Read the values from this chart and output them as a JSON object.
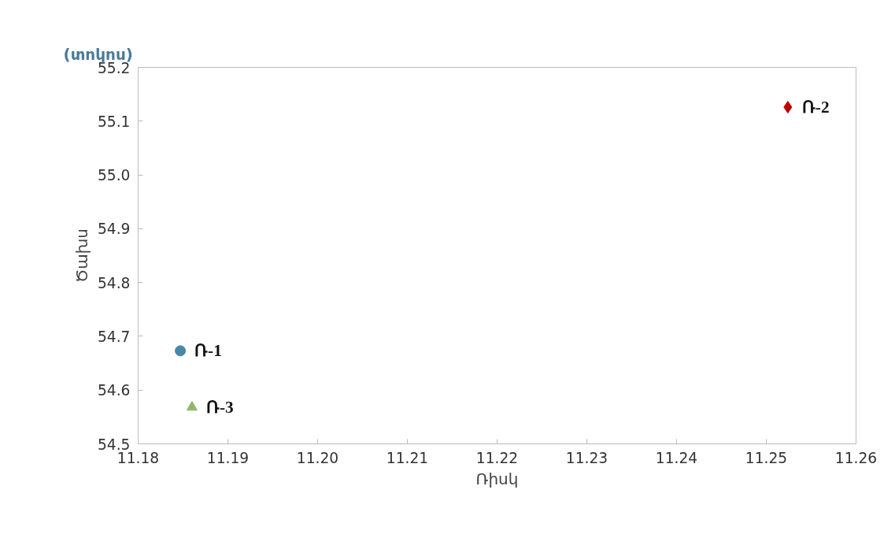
{
  "chart_data": {
    "type": "scatter",
    "xlabel": "Ռիսկ",
    "ylabel": "Ծախս",
    "annotations": [
      "(տոկոս)"
    ],
    "series": [
      {
        "name": "Ռ-1",
        "color": "#4a86a8",
        "marker": "circle",
        "x": [
          11.1847
        ],
        "values": [
          54.673
        ]
      },
      {
        "name": "Ռ-2",
        "color": "#c00000",
        "marker": "diamond",
        "x": [
          11.2524
        ],
        "values": [
          55.126
        ]
      },
      {
        "name": "Ռ-3",
        "color": "#8fb66a",
        "marker": "triangle",
        "x": [
          11.186
        ],
        "values": [
          54.568
        ]
      }
    ],
    "xlim": [
      11.18,
      11.26
    ],
    "xticks": [
      {
        "value": 11.18,
        "label": "11.18"
      },
      {
        "value": 11.19,
        "label": "11.19"
      },
      {
        "value": 11.2,
        "label": "11.20"
      },
      {
        "value": 11.21,
        "label": "11.21"
      },
      {
        "value": 11.22,
        "label": "11.22"
      },
      {
        "value": 11.23,
        "label": "11.23"
      },
      {
        "value": 11.24,
        "label": "11.24"
      },
      {
        "value": 11.25,
        "label": "11.25"
      },
      {
        "value": 11.26,
        "label": "11.26"
      }
    ],
    "ylim": [
      54.5,
      55.2
    ],
    "yticks": [
      {
        "value": 54.5,
        "label": "54.5"
      },
      {
        "value": 54.6,
        "label": "54.6"
      },
      {
        "value": 54.7,
        "label": "54.7"
      },
      {
        "value": 54.8,
        "label": "54.8"
      },
      {
        "value": 54.9,
        "label": "54.9"
      },
      {
        "value": 55.0,
        "label": "55.0"
      },
      {
        "value": 55.1,
        "label": "55.1"
      },
      {
        "value": 55.2,
        "label": "55.2"
      }
    ],
    "grid": false,
    "legend": false
  }
}
